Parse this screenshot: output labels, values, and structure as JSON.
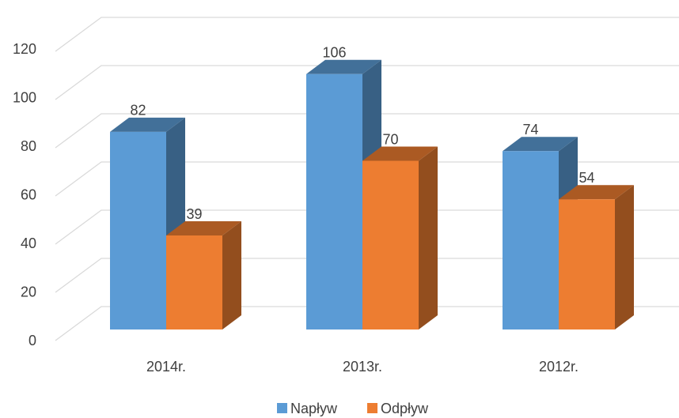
{
  "chart_data": {
    "type": "bar3d",
    "categories": [
      "2014r.",
      "2013r.",
      "2012r."
    ],
    "series": [
      {
        "name": "Napływ",
        "color": "#5b9bd5",
        "values": [
          82,
          106,
          74
        ]
      },
      {
        "name": "Odpływ",
        "color": "#ed7d31",
        "values": [
          39,
          70,
          54
        ]
      }
    ],
    "ylim": [
      0,
      120
    ],
    "yticks": [
      0,
      20,
      40,
      60,
      80,
      100,
      120
    ],
    "grid": true,
    "legend": "bottom"
  }
}
